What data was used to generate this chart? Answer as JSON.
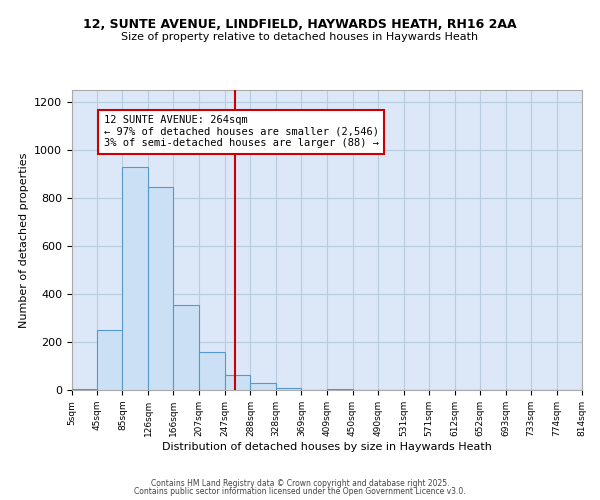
{
  "title1": "12, SUNTE AVENUE, LINDFIELD, HAYWARDS HEATH, RH16 2AA",
  "title2": "Size of property relative to detached houses in Haywards Heath",
  "xlabel": "Distribution of detached houses by size in Haywards Heath",
  "ylabel": "Number of detached properties",
  "bar_edges": [
    5,
    45,
    85,
    126,
    166,
    207,
    247,
    288,
    328,
    369,
    409,
    450,
    490,
    531,
    571,
    612,
    652,
    693,
    733,
    774,
    814
  ],
  "bar_heights": [
    5,
    248,
    930,
    845,
    355,
    158,
    63,
    30,
    10,
    0,
    5,
    0,
    0,
    0,
    0,
    0,
    0,
    0,
    0,
    0
  ],
  "property_size": 264,
  "annotation_title": "12 SUNTE AVENUE: 264sqm",
  "annotation_line1": "← 97% of detached houses are smaller (2,546)",
  "annotation_line2": "3% of semi-detached houses are larger (88) →",
  "vline_color": "#cc0000",
  "bar_facecolor": "#cce0f5",
  "bar_edgecolor": "#5599cc",
  "background_color": "#dce8f8",
  "grid_color": "#b8cce0",
  "ylim": [
    0,
    1250
  ],
  "yticks": [
    0,
    200,
    400,
    600,
    800,
    1000,
    1200
  ],
  "footer1": "Contains HM Land Registry data © Crown copyright and database right 2025.",
  "footer2": "Contains public sector information licensed under the Open Government Licence v3.0."
}
